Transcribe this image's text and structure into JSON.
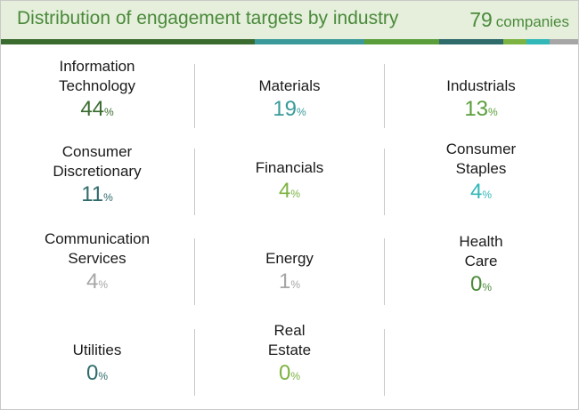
{
  "header": {
    "title": "Distribution of engagement targets by industry",
    "count_value": "79",
    "count_label": "companies"
  },
  "colors": {
    "dark_green": "#3a6b2f",
    "teal": "#3a9a9a",
    "green": "#5a9e3c",
    "light_green": "#7cb342",
    "aqua": "#33b8b8",
    "grey": "#a6a6a6",
    "slate": "#2f6b6b"
  },
  "chart_data": {
    "type": "table",
    "title": "Distribution of engagement targets by industry",
    "total": "79 companies",
    "unit": "%",
    "categories": [
      "Information\nTechnology",
      "Materials",
      "Industrials",
      "Consumer\nDiscretionary",
      "Financials",
      "Consumer\nStaples",
      "Communication\nServices",
      "Energy",
      "Health\nCare",
      "Utilities",
      "Real\nEstate"
    ],
    "values": [
      44,
      19,
      13,
      11,
      4,
      4,
      4,
      1,
      0,
      0,
      0
    ],
    "value_colors": [
      "#3a6b2f",
      "#3a9a9a",
      "#5a9e3c",
      "#2f6b6b",
      "#7cb342",
      "#33b8b8",
      "#a6a6a6",
      "#a6a6a6",
      "#4a8a3a",
      "#2f6b6b",
      "#7cb342"
    ]
  }
}
